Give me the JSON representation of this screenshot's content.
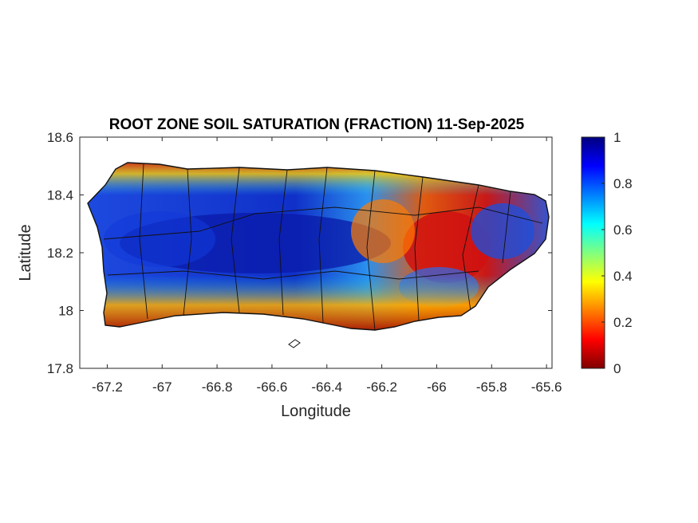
{
  "chart_data": {
    "type": "heatmap",
    "title": "ROOT ZONE SOIL SATURATION (FRACTION) 11-Sep-2025",
    "xlabel": "Longitude",
    "ylabel": "Latitude",
    "xlim": [
      -67.3,
      -65.58
    ],
    "ylim": [
      17.8,
      18.6
    ],
    "xticks": [
      -67.2,
      -67,
      -66.8,
      -66.6,
      -66.4,
      -66.2,
      -66,
      -65.8,
      -65.6
    ],
    "yticks": [
      17.8,
      18,
      18.2,
      18.4,
      18.6
    ],
    "xtick_labels": [
      "-67.2",
      "-67",
      "-66.8",
      "-66.6",
      "-66.4",
      "-66.2",
      "-66",
      "-65.8",
      "-65.6"
    ],
    "ytick_labels": [
      "17.8",
      "18",
      "18.2",
      "18.4",
      "18.6"
    ],
    "colorbar": {
      "colormap": "jet",
      "clim": [
        0,
        1
      ],
      "ticks": [
        0,
        0.2,
        0.4,
        0.6,
        0.8,
        1
      ],
      "tick_labels": [
        "0",
        "0.2",
        "0.4",
        "0.6",
        "0.8",
        "1"
      ]
    },
    "grid": false
  }
}
